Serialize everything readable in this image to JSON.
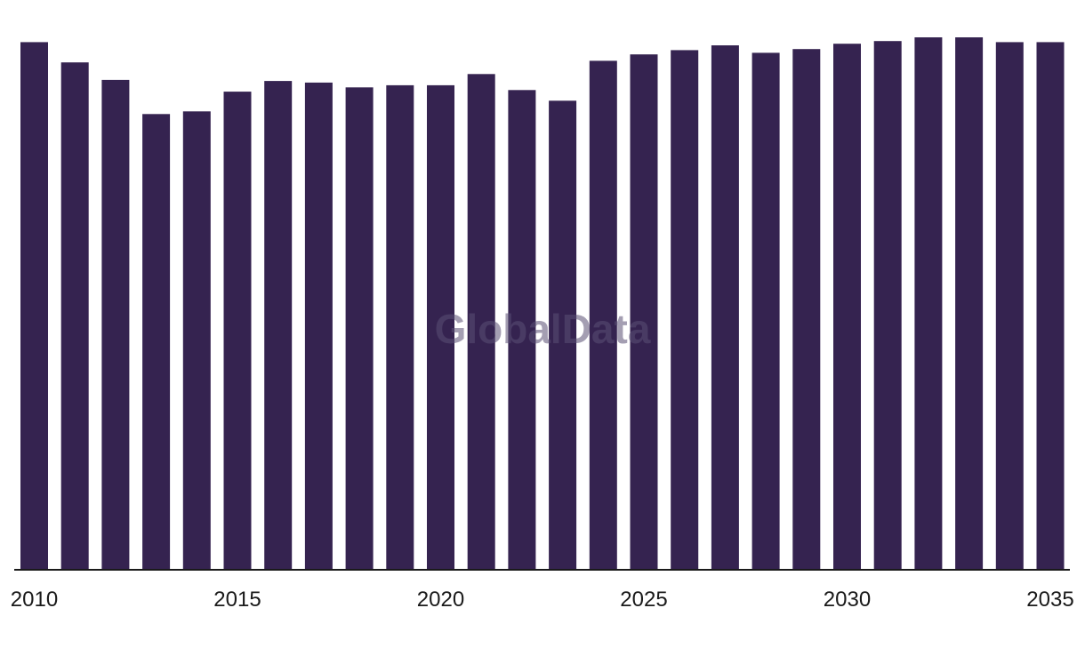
{
  "watermark": "GlobalData",
  "colors": {
    "bar": "#352350",
    "axis": "#1a1a1a",
    "background": "#ffffff"
  },
  "chart_data": {
    "type": "bar",
    "title": "",
    "xlabel": "",
    "ylabel": "",
    "ylim": [
      0,
      100
    ],
    "grid": false,
    "categories": [
      2010,
      2011,
      2012,
      2013,
      2014,
      2015,
      2016,
      2017,
      2018,
      2019,
      2020,
      2021,
      2022,
      2023,
      2024,
      2025,
      2026,
      2027,
      2028,
      2029,
      2030,
      2031,
      2032,
      2033,
      2034,
      2035
    ],
    "x_tick_labels": [
      "2010",
      "2015",
      "2020",
      "2025",
      "2030",
      "2035"
    ],
    "values": [
      99.1,
      95.3,
      92.0,
      85.6,
      86.1,
      89.8,
      91.8,
      91.5,
      90.6,
      91.0,
      91.0,
      93.1,
      90.1,
      88.1,
      95.6,
      96.8,
      97.6,
      98.5,
      97.1,
      97.8,
      98.8,
      99.3,
      100.0,
      100.0,
      99.1,
      99.1
    ]
  }
}
